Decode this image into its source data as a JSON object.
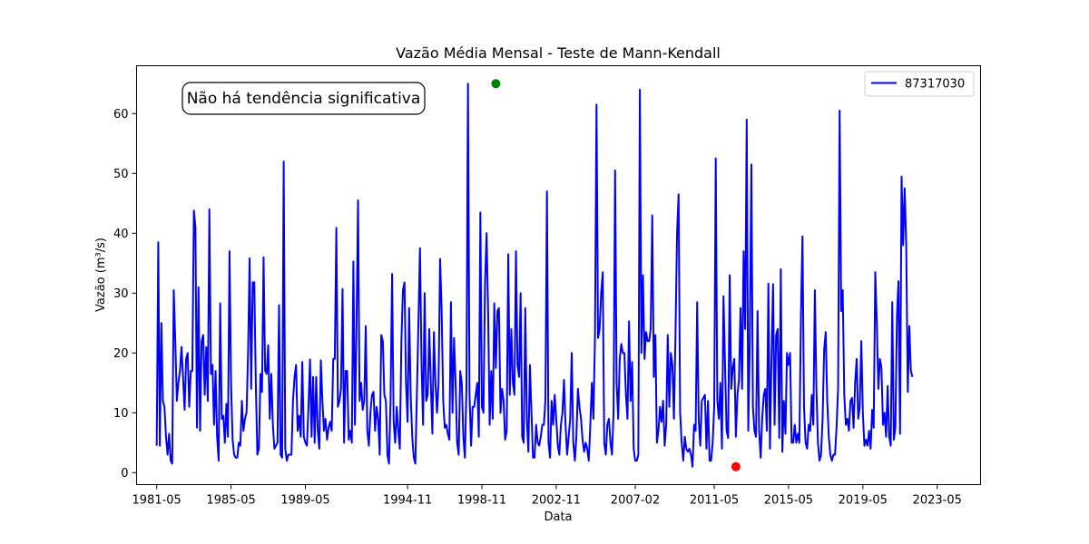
{
  "chart_data": {
    "type": "line",
    "title": "Vazão Média Mensal - Teste de Mann-Kendall",
    "xlabel": "Data",
    "ylabel": "Vazão (m³/s)",
    "x_range": [
      "1980-04",
      "2025-09"
    ],
    "ylim": [
      -2,
      68
    ],
    "y_ticks": [
      0,
      10,
      20,
      30,
      40,
      50,
      60
    ],
    "x_ticks": [
      "1981-05",
      "1985-05",
      "1989-05",
      "1994-11",
      "1998-11",
      "2002-11",
      "2007-02",
      "2011-05",
      "2015-05",
      "2019-05",
      "2023-05"
    ],
    "grid": false,
    "legend": {
      "position": "top-right",
      "entries": [
        "87317030"
      ]
    },
    "annotation": "Não há tendência significativa",
    "series": [
      {
        "name": "87317030",
        "color": "#0000ff",
        "x_start": "1981-05",
        "frequency": "monthly",
        "values": [
          4.5,
          38.5,
          4.5,
          25,
          12,
          11,
          6,
          3,
          6.5,
          2,
          1.5,
          30.5,
          22,
          12,
          15,
          17,
          21,
          16,
          10.5,
          19,
          20,
          11,
          17,
          17,
          43.8,
          41,
          7.5,
          31,
          7,
          22,
          23,
          13,
          21,
          12,
          44,
          16.5,
          18,
          8,
          17,
          6,
          2,
          28.3,
          9,
          9.5,
          5,
          11.5,
          6,
          37,
          15,
          5.5,
          3,
          2.5,
          2.5,
          5,
          4.5,
          12,
          7,
          9,
          10,
          20,
          35.8,
          14,
          31.8,
          31.8,
          15,
          3,
          4,
          16.5,
          13.5,
          36,
          17,
          16.5,
          21.3,
          9,
          16.5,
          8,
          4,
          4.5,
          5,
          28,
          3,
          2.5,
          52,
          4,
          2,
          3,
          3,
          3,
          12,
          16,
          18,
          7,
          9.5,
          6,
          18.5,
          6,
          5,
          4.5,
          11,
          18.9,
          6,
          16,
          5,
          16,
          7,
          4,
          18.8,
          12,
          7,
          9,
          5.5,
          7.5,
          8.5,
          7,
          19,
          19,
          40.9,
          11,
          12,
          14,
          30.7,
          5,
          17,
          17,
          5.5,
          7,
          5,
          35.3,
          8,
          24,
          45.5,
          12,
          15,
          10.5,
          12,
          24.5,
          7,
          4.5,
          10,
          13,
          13.5,
          7,
          11,
          9,
          3,
          23,
          22,
          13,
          12,
          3,
          1.5,
          12,
          33.2,
          8.5,
          5,
          11,
          7,
          4,
          22,
          30.5,
          31.8,
          15,
          8.5,
          27.5,
          13,
          6,
          2.5,
          1.5,
          13,
          25,
          37.5,
          18.5,
          8,
          30,
          12,
          13,
          24,
          15,
          6.5,
          23.5,
          15,
          10,
          15,
          35.7,
          27,
          12,
          7.5,
          8,
          6.5,
          5.5,
          28.5,
          10,
          22.5,
          15,
          5,
          3,
          17,
          15,
          6,
          2.5,
          14,
          65,
          13,
          4.5,
          11,
          11,
          13,
          15,
          6,
          43.5,
          11,
          10,
          31.5,
          40,
          27,
          8,
          17,
          9,
          28.3,
          17.5,
          27,
          27.5,
          10,
          14,
          12,
          5.5,
          7,
          36.5,
          13,
          24,
          15,
          13,
          37,
          18,
          16,
          30,
          6,
          5,
          27.5,
          9,
          3.5,
          18,
          10,
          2.5,
          2.5,
          8,
          5,
          4.5,
          6,
          8,
          8,
          12,
          47,
          5,
          2.5,
          12,
          8,
          13,
          9,
          4.5,
          3,
          8,
          10,
          15.5,
          8,
          3,
          6,
          9,
          20,
          5,
          2,
          6,
          14,
          11,
          9,
          5.5,
          3.5,
          5,
          4,
          2,
          8,
          15,
          9,
          22.5,
          61.5,
          22.5,
          24,
          30,
          33.5,
          5,
          3,
          8,
          9,
          5,
          3,
          10,
          50.5,
          15,
          9,
          19,
          21.5,
          20,
          20,
          13,
          9,
          25.3,
          12,
          18.5,
          4,
          2,
          2,
          3,
          64,
          20,
          33,
          19,
          23.5,
          22,
          22,
          24,
          43,
          16,
          23,
          5,
          7,
          11,
          8.5,
          12,
          4.5,
          8,
          23,
          11,
          20,
          18,
          9,
          23,
          40,
          46.5,
          10,
          5,
          2,
          6,
          4,
          3.5,
          4,
          3,
          1,
          8,
          7,
          28.5,
          9,
          4.5,
          12,
          12.5,
          13,
          4,
          12,
          2,
          2,
          5,
          11,
          52.5,
          12,
          9,
          15,
          4,
          29.5,
          18,
          7,
          5.8,
          33,
          14,
          17.5,
          19,
          6,
          13,
          15.5,
          27.5,
          14,
          37,
          24,
          59,
          7,
          22,
          51.5,
          11,
          7,
          6,
          27,
          7,
          2.5,
          9,
          13,
          14,
          7,
          31.6,
          4,
          18.8,
          31.5,
          8,
          23,
          24,
          5.8,
          34,
          3.5,
          12,
          6.5,
          20,
          18,
          20,
          5,
          5,
          8,
          5,
          6.5,
          5,
          26,
          39.5,
          11,
          5,
          4,
          8,
          7,
          13,
          8,
          30.5,
          14,
          5,
          2,
          3,
          9,
          20.5,
          23.5,
          12,
          6,
          3,
          2,
          3,
          3,
          7.5,
          14,
          60.5,
          27,
          30.5,
          13,
          8,
          9,
          7,
          12,
          12.5,
          7.5,
          15,
          19,
          9,
          11,
          22,
          10,
          4.5,
          5.5,
          4.5,
          7,
          4,
          10.5,
          7.5,
          33.5,
          25,
          14,
          19,
          17.5,
          8,
          10,
          6,
          14.5,
          6,
          4.5,
          28.5,
          5.5,
          7.5,
          26,
          32,
          6.5,
          49.5,
          38,
          47.5,
          38,
          13.5,
          24.5,
          17,
          16
        ]
      }
    ],
    "highlights": {
      "max": {
        "date": "1999-08",
        "value": 65,
        "color": "#008000"
      },
      "min": {
        "date": "2012-07",
        "value": 1,
        "color": "#ff0000"
      }
    }
  }
}
